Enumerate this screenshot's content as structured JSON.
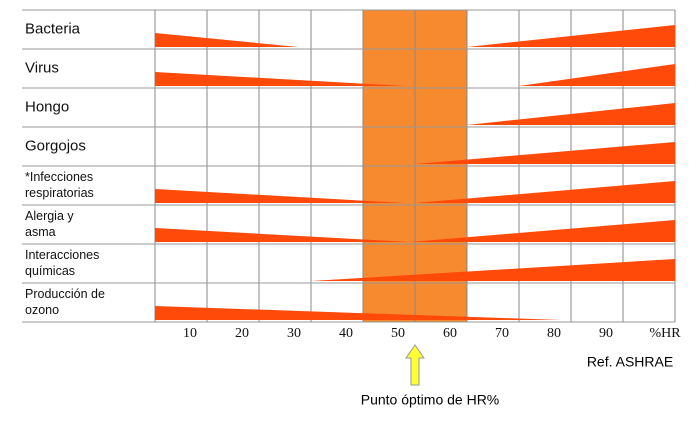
{
  "chart_data": {
    "type": "wedge",
    "categories": [
      [
        "Bacteria"
      ],
      [
        "Virus"
      ],
      [
        "Hongo"
      ],
      [
        "Gorgojos"
      ],
      [
        "*Infecciones",
        "respiratorias"
      ],
      [
        "Alergia y",
        "asma"
      ],
      [
        "Interacciones",
        "químicas"
      ],
      [
        "Producción de",
        "ozono"
      ]
    ],
    "decrease_end": [
      27.5,
      48,
      null,
      null,
      48,
      49,
      null,
      78
    ],
    "increase_start": [
      60,
      70,
      60,
      50,
      50,
      49,
      30,
      null
    ],
    "color": "#ff4a0a",
    "optimal_range": [
      40,
      60
    ],
    "optimal_color": "#f7892f",
    "optimal_point": 50,
    "optimal_label": "Punto óptimo de HR%",
    "reference": "Ref. ASHRAE",
    "xlim": [
      0,
      100
    ],
    "xticks": [
      10,
      20,
      30,
      40,
      50,
      60,
      70,
      80,
      90,
      {
        "value": 100,
        "label": "%HR"
      }
    ],
    "grid": true
  }
}
